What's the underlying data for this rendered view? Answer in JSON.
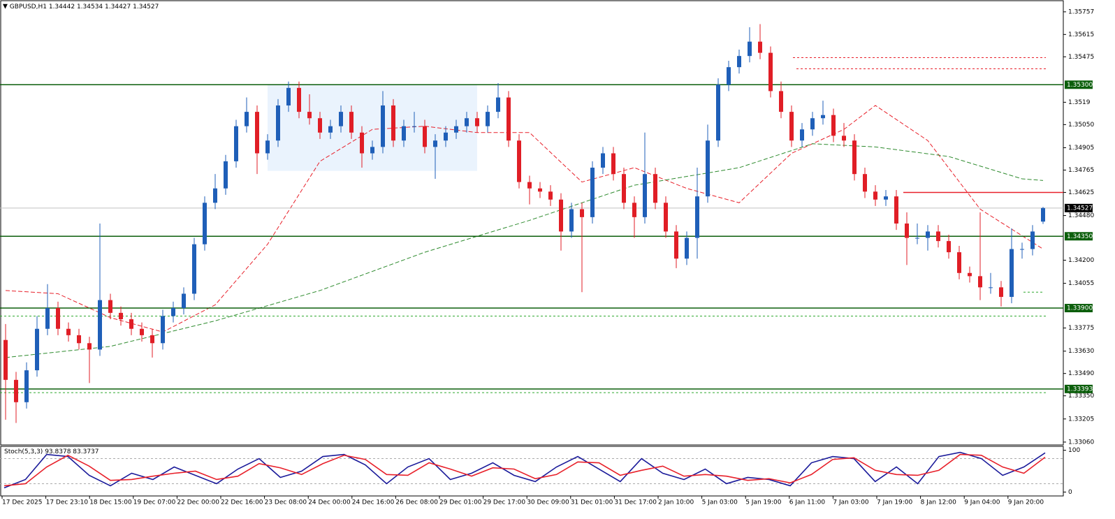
{
  "chart_data": {
    "type": "candlestick",
    "symbol": "GBPUSD,H1",
    "ylim": [
      1.33042,
      1.35831
    ],
    "yticks": [
      1.35757,
      1.35615,
      1.35475,
      1.3519,
      {
        "value": 1.3505,
        "label": "1.35050"
      },
      1.34905,
      1.34765,
      1.34625,
      {
        "value": 1.3448,
        "label": "1.34480"
      },
      {
        "value": 1.342,
        "label": "1.34200"
      },
      1.34055,
      1.33775,
      {
        "value": 1.3363,
        "label": "1.33630"
      },
      {
        "value": 1.3349,
        "label": "1.33490"
      },
      {
        "value": 1.3335,
        "label": "1.33350"
      },
      1.33205,
      {
        "value": 1.3306,
        "label": "1.33060"
      }
    ],
    "x_labels": [
      "17 Dec 2025",
      "17 Dec 23:10",
      "18 Dec 15:00",
      "19 Dec 07:00",
      "22 Dec 00:00",
      "22 Dec 16:00",
      "23 Dec 08:00",
      "24 Dec 00:00",
      "24 Dec 16:00",
      "26 Dec 08:00",
      "29 Dec 01:00",
      "29 Dec 17:00",
      "30 Dec 09:00",
      "31 Dec 01:00",
      "31 Dec 17:00",
      "2 Jan 10:00",
      "5 Jan 03:00",
      "5 Jan 19:00",
      "6 Jan 11:00",
      "7 Jan 03:00",
      "7 Jan 19:00",
      "8 Jan 12:00",
      "9 Jan 04:00",
      "9 Jan 20:00"
    ],
    "up_color": "#1f5fb8",
    "down_color": "#e01e26",
    "series": [
      {
        "name": "GBPUSD",
        "values": [
          [
            1.337,
            1.338,
            1.332,
            1.3345
          ],
          [
            1.3345,
            1.335,
            1.3318,
            1.3331
          ],
          [
            1.3331,
            1.3356,
            1.3327,
            1.3351
          ],
          [
            1.3351,
            1.3385,
            1.3347,
            1.3377
          ],
          [
            1.3377,
            1.3405,
            1.3373,
            1.339
          ],
          [
            1.339,
            1.3394,
            1.3373,
            1.3377
          ],
          [
            1.3377,
            1.3381,
            1.3369,
            1.3373
          ],
          [
            1.3373,
            1.3377,
            1.3364,
            1.3368
          ],
          [
            1.3368,
            1.3372,
            1.3343,
            1.3364
          ],
          [
            1.3364,
            1.3443,
            1.336,
            1.3395
          ],
          [
            1.3395,
            1.3399,
            1.3383,
            1.3387
          ],
          [
            1.3387,
            1.3391,
            1.3379,
            1.3383
          ],
          [
            1.3383,
            1.3387,
            1.3373,
            1.3377
          ],
          [
            1.3377,
            1.3381,
            1.3369,
            1.3373
          ],
          [
            1.3373,
            1.3377,
            1.3359,
            1.3368
          ],
          [
            1.3368,
            1.3389,
            1.3364,
            1.3385
          ],
          [
            1.3385,
            1.3394,
            1.3381,
            1.339
          ],
          [
            1.339,
            1.3403,
            1.3386,
            1.3399
          ],
          [
            1.3399,
            1.3434,
            1.3395,
            1.343
          ],
          [
            1.343,
            1.346,
            1.3426,
            1.3456
          ],
          [
            1.3456,
            1.3474,
            1.3452,
            1.3465
          ],
          [
            1.3465,
            1.3486,
            1.3461,
            1.3482
          ],
          [
            1.3482,
            1.3508,
            1.3478,
            1.3504
          ],
          [
            1.3504,
            1.3522,
            1.35,
            1.3513
          ],
          [
            1.3513,
            1.3517,
            1.3474,
            1.3487
          ],
          [
            1.3487,
            1.3499,
            1.3483,
            1.3495
          ],
          [
            1.3495,
            1.3521,
            1.3491,
            1.3517
          ],
          [
            1.3517,
            1.3532,
            1.3513,
            1.3528
          ],
          [
            1.3528,
            1.3532,
            1.3509,
            1.3513
          ],
          [
            1.3513,
            1.3524,
            1.3505,
            1.3509
          ],
          [
            1.3509,
            1.3513,
            1.3496,
            1.35
          ],
          [
            1.35,
            1.3508,
            1.3496,
            1.3504
          ],
          [
            1.3504,
            1.3517,
            1.35,
            1.3513
          ],
          [
            1.3513,
            1.3517,
            1.3496,
            1.35
          ],
          [
            1.35,
            1.3504,
            1.3478,
            1.3487
          ],
          [
            1.3487,
            1.3495,
            1.3483,
            1.3491
          ],
          [
            1.3491,
            1.3526,
            1.3487,
            1.3517
          ],
          [
            1.3517,
            1.3521,
            1.3491,
            1.3495
          ],
          [
            1.3495,
            1.3508,
            1.3491,
            1.3504
          ],
          [
            1.3504,
            1.3513,
            1.35,
            1.3504
          ],
          [
            1.3504,
            1.3508,
            1.3487,
            1.3491
          ],
          [
            1.3491,
            1.3499,
            1.3471,
            1.3495
          ],
          [
            1.3495,
            1.3504,
            1.3491,
            1.35
          ],
          [
            1.35,
            1.3508,
            1.3496,
            1.3504
          ],
          [
            1.3504,
            1.3513,
            1.35,
            1.3509
          ],
          [
            1.3509,
            1.3513,
            1.35,
            1.3504
          ],
          [
            1.3504,
            1.3517,
            1.35,
            1.3513
          ],
          [
            1.3513,
            1.3531,
            1.3509,
            1.3522
          ],
          [
            1.3522,
            1.3526,
            1.3491,
            1.3495
          ],
          [
            1.3495,
            1.3499,
            1.3465,
            1.3469
          ],
          [
            1.3469,
            1.3473,
            1.3455,
            1.3465
          ],
          [
            1.3465,
            1.3469,
            1.3459,
            1.3463
          ],
          [
            1.3463,
            1.3467,
            1.3454,
            1.3458
          ],
          [
            1.3458,
            1.3462,
            1.3426,
            1.3438
          ],
          [
            1.3438,
            1.3456,
            1.3434,
            1.3452
          ],
          [
            1.3452,
            1.3456,
            1.34,
            1.3447
          ],
          [
            1.3447,
            1.3482,
            1.3443,
            1.3478
          ],
          [
            1.3478,
            1.3491,
            1.3474,
            1.3487
          ],
          [
            1.3487,
            1.3491,
            1.347,
            1.3474
          ],
          [
            1.3474,
            1.3478,
            1.3452,
            1.3456
          ],
          [
            1.3456,
            1.346,
            1.3434,
            1.3447
          ],
          [
            1.3447,
            1.35,
            1.3443,
            1.3474
          ],
          [
            1.3474,
            1.3478,
            1.3452,
            1.3456
          ],
          [
            1.3456,
            1.346,
            1.3434,
            1.3438
          ],
          [
            1.3438,
            1.3442,
            1.3415,
            1.3421
          ],
          [
            1.3421,
            1.3438,
            1.3417,
            1.3434
          ],
          [
            1.3434,
            1.3478,
            1.3421,
            1.346
          ],
          [
            1.346,
            1.3505,
            1.3456,
            1.3495
          ],
          [
            1.3495,
            1.3534,
            1.3491,
            1.353
          ],
          [
            1.353,
            1.3545,
            1.3526,
            1.3541
          ],
          [
            1.3541,
            1.3552,
            1.3537,
            1.3548
          ],
          [
            1.3548,
            1.3566,
            1.3544,
            1.3557
          ],
          [
            1.3557,
            1.3568,
            1.3546,
            1.355
          ],
          [
            1.355,
            1.3554,
            1.3522,
            1.3526
          ],
          [
            1.3526,
            1.3532,
            1.3509,
            1.3513
          ],
          [
            1.3513,
            1.3517,
            1.3491,
            1.3495
          ],
          [
            1.3495,
            1.3506,
            1.3491,
            1.3502
          ],
          [
            1.3502,
            1.3513,
            1.3498,
            1.3509
          ],
          [
            1.3509,
            1.352,
            1.3505,
            1.3511
          ],
          [
            1.3511,
            1.3515,
            1.3494,
            1.3498
          ],
          [
            1.3498,
            1.3506,
            1.3491,
            1.3495
          ],
          [
            1.3495,
            1.3499,
            1.347,
            1.3474
          ],
          [
            1.3474,
            1.3478,
            1.3459,
            1.3463
          ],
          [
            1.3463,
            1.3467,
            1.3454,
            1.3458
          ],
          [
            1.3458,
            1.3464,
            1.3454,
            1.346
          ],
          [
            1.346,
            1.3464,
            1.3439,
            1.3443
          ],
          [
            1.3443,
            1.345,
            1.3417,
            1.3434
          ],
          [
            1.3434,
            1.3443,
            1.343,
            1.3434
          ],
          [
            1.3434,
            1.3442,
            1.3426,
            1.3438
          ],
          [
            1.3438,
            1.3442,
            1.3428,
            1.3432
          ],
          [
            1.3432,
            1.3436,
            1.3421,
            1.3425
          ],
          [
            1.3425,
            1.3429,
            1.3408,
            1.3412
          ],
          [
            1.3412,
            1.3416,
            1.3406,
            1.341
          ],
          [
            1.341,
            1.345,
            1.3395,
            1.3403
          ],
          [
            1.3403,
            1.3412,
            1.3399,
            1.3403
          ],
          [
            1.3403,
            1.3407,
            1.3391,
            1.3397
          ],
          [
            1.3397,
            1.344,
            1.3393,
            1.3427
          ],
          [
            1.3427,
            1.3431,
            1.3421,
            1.3427
          ],
          [
            1.3427,
            1.3442,
            1.3423,
            1.3438
          ],
          [
            1.34442,
            1.34534,
            1.34427,
            1.34527
          ]
        ]
      }
    ],
    "moving_averages": [
      {
        "color": "#e8202a",
        "x": [
          0,
          5,
          10,
          15,
          20,
          25,
          30,
          35,
          40,
          45,
          50,
          55,
          60,
          65,
          70,
          75,
          80,
          83,
          88,
          93,
          99
        ],
        "values": [
          1.3401,
          1.3399,
          1.3384,
          1.3375,
          1.3392,
          1.343,
          1.3482,
          1.3502,
          1.3504,
          1.35,
          1.35,
          1.3469,
          1.3478,
          1.3465,
          1.3456,
          1.3487,
          1.3502,
          1.3517,
          1.3495,
          1.3452,
          1.3427
        ]
      },
      {
        "color": "#2e8b2e",
        "x": [
          0,
          10,
          20,
          30,
          40,
          50,
          60,
          70,
          77,
          83,
          90,
          97,
          99
        ],
        "values": [
          1.3359,
          1.3366,
          1.3382,
          1.3401,
          1.3425,
          1.3445,
          1.3467,
          1.3478,
          1.3493,
          1.3491,
          1.3485,
          1.3471,
          1.347
        ]
      }
    ],
    "levels": [
      {
        "value": 1.353,
        "label": "1.35300"
      },
      {
        "value": 1.3435,
        "label": "1.34350"
      },
      {
        "value": 1.339,
        "label": "1.33900"
      },
      {
        "value": 1.33393,
        "label": "1.33393"
      }
    ],
    "level_color": "#0b5e0b",
    "resistance": 1.34625,
    "dotted_levels": [
      1.3547,
      1.354,
      1.34,
      1.3385,
      1.3337
    ],
    "zone": [
      1.353,
      1.3476
    ],
    "stoch": {
      "name": "Stoch(5,3,3)",
      "ylim": [
        -6,
        106
      ],
      "yticks": [
        100,
        0
      ],
      "levels": [
        80,
        20
      ],
      "series": [
        {
          "color": "#1a1a9a",
          "values": [
            10,
            30,
            90,
            85,
            40,
            15,
            45,
            30,
            60,
            40,
            20,
            55,
            80,
            35,
            50,
            85,
            90,
            65,
            20,
            60,
            80,
            30,
            45,
            70,
            40,
            25,
            60,
            85,
            55,
            25,
            80,
            45,
            30,
            55,
            20,
            35,
            30,
            15,
            70,
            85,
            80,
            25,
            60,
            20,
            85,
            95,
            80,
            40,
            60,
            93.8378
          ]
        },
        {
          "color": "#e8202a",
          "values": [
            15,
            20,
            60,
            88,
            62,
            28,
            30,
            38,
            45,
            50,
            30,
            38,
            68,
            58,
            42,
            68,
            88,
            78,
            42,
            40,
            70,
            55,
            38,
            58,
            55,
            32,
            42,
            72,
            70,
            40,
            52,
            62,
            38,
            42,
            38,
            28,
            32,
            22,
            42,
            78,
            82,
            52,
            42,
            40,
            52,
            90,
            88,
            60,
            45,
            83.3737
          ]
        }
      ]
    }
  }
}
